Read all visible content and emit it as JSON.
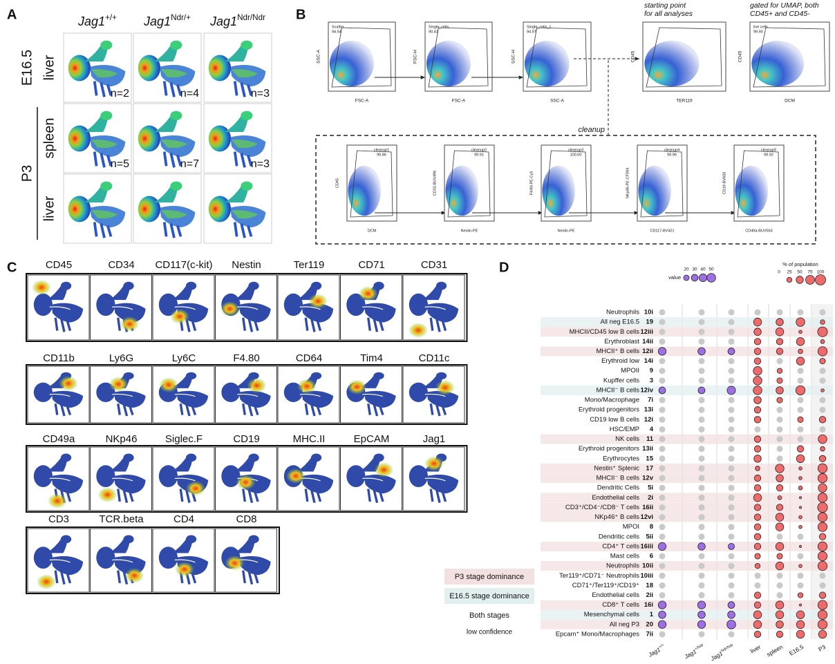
{
  "panel_a": {
    "label": "A",
    "genotypes": [
      {
        "name": "Jag1",
        "sup": "+/+"
      },
      {
        "name": "Jag1",
        "sup": "Ndr/+"
      },
      {
        "name": "Jag1",
        "sup": "Ndr/Ndr"
      }
    ],
    "groups": [
      {
        "label": "E16.5",
        "rows": [
          {
            "tissue": "liver",
            "n": [
              "n=2",
              "n=4",
              "n=3"
            ]
          }
        ]
      },
      {
        "label": "P3",
        "rows": [
          {
            "tissue": "spleen",
            "n": [
              "n=5",
              "n=7",
              "n=3"
            ]
          },
          {
            "tissue": "liver"
          }
        ]
      }
    ]
  },
  "panel_b": {
    "label": "B",
    "annotations": [
      [
        "starting point",
        "for all analyses"
      ],
      [
        "gated for UMAP, both",
        "CD45+ and CD45-"
      ]
    ],
    "plots": [
      {
        "y": "SSC-A",
        "x": "FSC-A",
        "gate": "Scatter",
        "pct": "94.54"
      },
      {
        "y": "FSC-H",
        "x": "FSC-A",
        "gate": "Single_cells",
        "pct": "90.41"
      },
      {
        "y": "SSC-H",
        "x": "SSC-A",
        "gate": "Single_cells_1",
        "pct": "94.97"
      },
      {
        "y": "CD45",
        "x": "TER119"
      },
      {
        "y": "CD45",
        "x": "DCM",
        "gate": "live cells",
        "pct": "99.90"
      }
    ],
    "cleanup_label": "cleanup",
    "cleanup": [
      {
        "y": "CD45",
        "x": "DCM",
        "gate": "cleanup1",
        "pct": "99.86"
      },
      {
        "y": "CD31-BUV496",
        "x": "Nestin-PE",
        "gate": "cleanup2",
        "pct": "99.91"
      },
      {
        "y": "F4/80-PE-Cy5",
        "x": "Nestin-PE",
        "gate": "cleanup3",
        "pct": "100.00"
      },
      {
        "y": "NKp46-PE-CF594",
        "x": "CD117-BV421",
        "gate": "cleanup4",
        "pct": "99.96"
      },
      {
        "y": "CD19-BV650",
        "x": "CD49a-BUV563",
        "gate": "cleanup5",
        "pct": "99.92"
      }
    ]
  },
  "panel_c": {
    "label": "C",
    "markers": [
      [
        "CD45",
        "CD34",
        "CD117(c-kit)",
        "Nestin",
        "Ter119",
        "CD71",
        "CD31"
      ],
      [
        "CD11b",
        "Ly6G",
        "Ly6C",
        "F4.80",
        "CD64",
        "Tim4",
        "CD11c"
      ],
      [
        "CD49a",
        "NKp46",
        "Siglec.F",
        "CD19",
        "MHC.II",
        "EpCAM",
        "Jag1"
      ],
      [
        "CD3",
        "TCR.beta",
        "CD4",
        "CD8"
      ]
    ]
  },
  "panel_d": {
    "label": "D",
    "type": "dot",
    "size_title": "value",
    "size_ticks": [
      20,
      30,
      40,
      50
    ],
    "pct_title": "% of population",
    "pct_ticks": [
      0,
      25,
      50,
      75,
      100
    ],
    "groups": [
      "P3 stage dominance",
      "E16.5 stage dominance",
      "Both stages",
      "low confidence"
    ],
    "columns": [
      {
        "name": "Jag1",
        "sup": "+/+"
      },
      {
        "name": "Jag1",
        "sup": "+/Ndr"
      },
      {
        "name": "Jag1",
        "sup": "Ndr/Ndr"
      },
      {
        "name": "liver"
      },
      {
        "name": "spleen"
      },
      {
        "name": "E16.5"
      },
      {
        "name": "P3"
      }
    ],
    "rows": [
      {
        "name": "Neutrophils",
        "id": "10i",
        "group": 2,
        "values": [
          null,
          null,
          null,
          null,
          null,
          null,
          null
        ]
      },
      {
        "name": "All neg E16.5",
        "id": "19",
        "group": 1,
        "values": [
          null,
          null,
          null,
          60,
          50,
          70,
          20
        ]
      },
      {
        "name": "MHCII/CD45 low B cells",
        "id": "12iii",
        "group": 0,
        "values": [
          null,
          null,
          null,
          50,
          60,
          10,
          90
        ]
      },
      {
        "name": "Erythroblast",
        "id": "14ii",
        "group": 2,
        "values": [
          null,
          null,
          null,
          40,
          40,
          60,
          15
        ]
      },
      {
        "name": "MHCII⁺ B cells",
        "id": "12ii",
        "group": 0,
        "values": [
          40,
          35,
          30,
          40,
          40,
          20,
          80
        ]
      },
      {
        "name": "Erythroid low",
        "id": "14i",
        "group": 3,
        "values": [
          null,
          null,
          null,
          40,
          null,
          60,
          30
        ]
      },
      {
        "name": "MPOII",
        "id": "9",
        "group": 3,
        "values": [
          null,
          null,
          null,
          70,
          25,
          null,
          null
        ]
      },
      {
        "name": "Kupffer cells",
        "id": "3",
        "group": 2,
        "values": [
          null,
          null,
          null,
          70,
          30,
          null,
          null
        ]
      },
      {
        "name": "MHCII⁻ B cells",
        "id": "12iv",
        "group": 1,
        "values": [
          30,
          30,
          45,
          70,
          50,
          80,
          10
        ]
      },
      {
        "name": "Mono/Macrophage",
        "id": "7i",
        "group": 2,
        "values": [
          null,
          null,
          null,
          50,
          30,
          null,
          null
        ]
      },
      {
        "name": "Erythroid progenitors",
        "id": "13i",
        "group": 3,
        "values": [
          null,
          null,
          null,
          40,
          null,
          null,
          null
        ]
      },
      {
        "name": "CD19 low B cells",
        "id": "12i",
        "group": 3,
        "values": [
          null,
          null,
          null,
          40,
          null,
          30,
          40
        ]
      },
      {
        "name": "HSC/EMP",
        "id": "4",
        "group": 2,
        "values": [
          null,
          null,
          null,
          null,
          null,
          null,
          null
        ]
      },
      {
        "name": "NK cells",
        "id": "11",
        "group": 0,
        "values": [
          null,
          null,
          null,
          40,
          null,
          null,
          70
        ]
      },
      {
        "name": "Erythroid progenitors",
        "id": "13ii",
        "group": 3,
        "values": [
          null,
          null,
          null,
          40,
          null,
          40,
          20
        ]
      },
      {
        "name": "Erythrocytes",
        "id": "15",
        "group": 2,
        "values": [
          null,
          null,
          null,
          50,
          null,
          60,
          40
        ]
      },
      {
        "name": "Nestin⁺ Splenic",
        "id": "17",
        "group": 0,
        "values": [
          null,
          null,
          null,
          20,
          70,
          10,
          80
        ]
      },
      {
        "name": "MHCII⁻ B cells",
        "id": "12v",
        "group": 0,
        "values": [
          null,
          null,
          null,
          40,
          50,
          10,
          80
        ]
      },
      {
        "name": "Dendritic Cells",
        "id": "5i",
        "group": 2,
        "values": [
          null,
          null,
          null,
          40,
          40,
          15,
          70
        ]
      },
      {
        "name": "Endothelial cells",
        "id": "2i",
        "group": 0,
        "values": [
          null,
          null,
          null,
          60,
          15,
          5,
          80
        ]
      },
      {
        "name": "CD3⁺/CD4⁻/CD8⁻ T cells",
        "id": "16ii",
        "group": 0,
        "values": [
          null,
          null,
          null,
          40,
          40,
          5,
          90
        ]
      },
      {
        "name": "NKp46⁺ B cells",
        "id": "12vi",
        "group": 0,
        "values": [
          null,
          null,
          null,
          40,
          60,
          10,
          80
        ]
      },
      {
        "name": "MPOI",
        "id": "8",
        "group": 3,
        "values": [
          null,
          null,
          null,
          40,
          60,
          10,
          80
        ]
      },
      {
        "name": "Dendritic cells",
        "id": "5ii",
        "group": 3,
        "values": [
          null,
          null,
          null,
          40,
          null,
          null,
          40
        ]
      },
      {
        "name": "CD4⁺ T cells",
        "id": "16iii",
        "group": 0,
        "values": [
          40,
          35,
          25,
          40,
          60,
          5,
          80
        ]
      },
      {
        "name": "Mast cells",
        "id": "6",
        "group": 2,
        "values": [
          null,
          null,
          null,
          30,
          30,
          null,
          80
        ]
      },
      {
        "name": "Neutrophils",
        "id": "10ii",
        "group": 0,
        "values": [
          null,
          null,
          null,
          25,
          60,
          10,
          80
        ]
      },
      {
        "name": "Ter119⁺/CD71⁻ Neutrophils",
        "id": "10iii",
        "group": 2,
        "values": [
          null,
          null,
          null,
          null,
          null,
          null,
          null
        ]
      },
      {
        "name": "CD71⁺/Ter119⁺/CD19⁺",
        "id": "18",
        "group": 2,
        "values": [
          null,
          null,
          null,
          null,
          null,
          null,
          null
        ]
      },
      {
        "name": "Endothelial cells",
        "id": "2ii",
        "group": 3,
        "values": [
          null,
          null,
          null,
          40,
          null,
          25,
          40
        ]
      },
      {
        "name": "CD8⁺ T cells",
        "id": "16i",
        "group": 0,
        "values": [
          40,
          40,
          30,
          40,
          60,
          5,
          80
        ]
      },
      {
        "name": "Mesenchymal cells",
        "id": "1",
        "group": 1,
        "values": [
          35,
          35,
          35,
          60,
          60,
          60,
          80
        ]
      },
      {
        "name": "All neg P3",
        "id": "20",
        "group": 0,
        "values": [
          40,
          40,
          50,
          60,
          50,
          60,
          80
        ]
      },
      {
        "name": "Epcam⁺ Mono/Macrophages",
        "id": "7ii",
        "group": 3,
        "values": [
          null,
          null,
          null,
          40,
          40,
          60,
          60
        ]
      }
    ]
  }
}
